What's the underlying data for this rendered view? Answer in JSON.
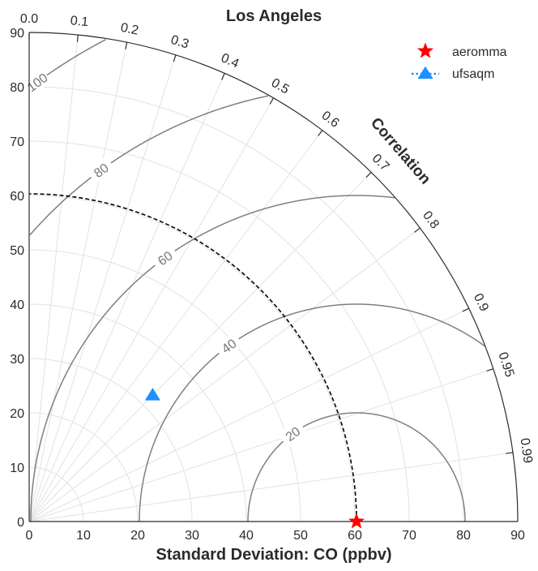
{
  "chart_data": {
    "type": "taylor",
    "title": "Los Angeles",
    "xlabel": "Standard Deviation: CO (ppbv)",
    "corr_label": "Correlation",
    "std_range": [
      0,
      90
    ],
    "std_ticks": [
      "0",
      "10",
      "20",
      "30",
      "40",
      "50",
      "60",
      "70",
      "80",
      "90"
    ],
    "corr_ticks": [
      "0.0",
      "0.1",
      "0.2",
      "0.3",
      "0.4",
      "0.5",
      "0.6",
      "0.7",
      "0.8",
      "0.9",
      "0.95",
      "0.99"
    ],
    "corr_tick_values": [
      0.0,
      0.1,
      0.2,
      0.3,
      0.4,
      0.5,
      0.6,
      0.7,
      0.8,
      0.9,
      0.95,
      0.99
    ],
    "ref_std": 60.3,
    "rms_contours": [
      20,
      40,
      60,
      80,
      100
    ],
    "rms_labels": [
      "20",
      "40",
      "60",
      "80",
      "100"
    ],
    "grid": true,
    "legend_position": "top-right",
    "series": [
      {
        "name": "aeromma",
        "marker": "star",
        "color": "#ff0000",
        "std": 60.3,
        "corr": 1.0
      },
      {
        "name": "ufsaqm",
        "marker": "triangle",
        "line": "dotted",
        "color": "#1e90ff",
        "std": 32.5,
        "corr": 0.7
      }
    ]
  }
}
